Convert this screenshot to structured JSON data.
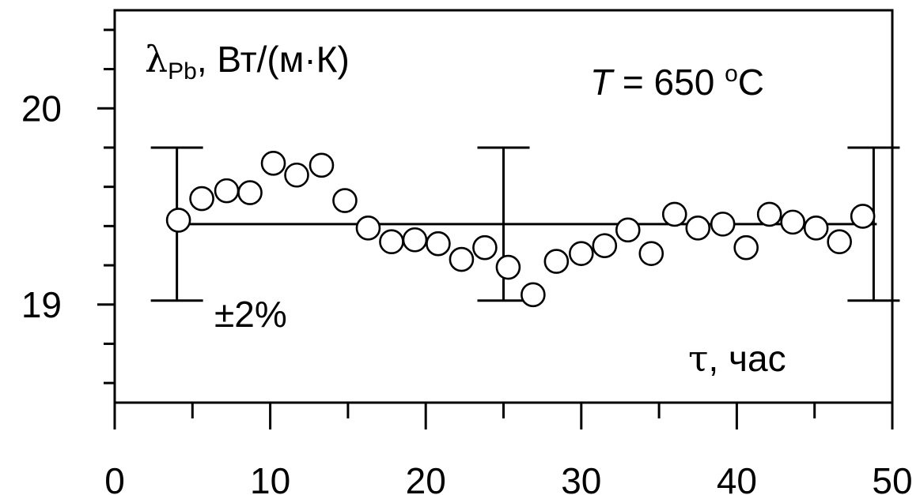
{
  "chart_data": {
    "type": "scatter",
    "title": "",
    "ylabel_prefix": "λ",
    "ylabel_subscript": "Pb",
    "ylabel_rest": ", Вт/(м·К)",
    "xlabel_symbol": "τ",
    "xlabel_rest": ", час",
    "temperature_T": "T",
    "temperature_rest": " = 650 ",
    "temperature_deg": "o",
    "temperature_unit": "C",
    "band_label": "±2%",
    "xlim": [
      0,
      50
    ],
    "ylim": [
      18.5,
      20.5
    ],
    "x_ticks": [
      0,
      10,
      20,
      30,
      40,
      50
    ],
    "x_tick_labels": [
      "0",
      "10",
      "20",
      "30",
      "40",
      "50"
    ],
    "y_major_ticks": [
      19,
      20
    ],
    "y_tick_labels": [
      "19",
      "20"
    ],
    "y_minor_ticks": [
      18.6,
      18.8,
      19.2,
      19.4,
      19.6,
      19.8,
      20.2,
      20.4
    ],
    "x_minor_ticks": [
      5,
      15,
      25,
      35,
      45
    ],
    "mean_value": 19.41,
    "mean_line_x": [
      4,
      49
    ],
    "error_bars": [
      {
        "x": 4,
        "low": 19.02,
        "high": 19.8
      },
      {
        "x": 25,
        "low": 19.02,
        "high": 19.8
      },
      {
        "x": 48.8,
        "low": 19.02,
        "high": 19.8
      }
    ],
    "series": [
      {
        "x": [
          4.1,
          5.6,
          7.2,
          8.7,
          10.2,
          11.7,
          13.3,
          14.8,
          16.3,
          17.8,
          19.3,
          20.8,
          22.3,
          23.8,
          25.3,
          26.9,
          28.4,
          30.0,
          31.5,
          33.0,
          34.5,
          36.0,
          37.5,
          39.1,
          40.6,
          42.1,
          43.6,
          45.1,
          46.6,
          48.1
        ],
        "y": [
          19.43,
          19.54,
          19.58,
          19.57,
          19.72,
          19.66,
          19.71,
          19.53,
          19.39,
          19.32,
          19.33,
          19.31,
          19.23,
          19.29,
          19.19,
          19.05,
          19.22,
          19.26,
          19.3,
          19.38,
          19.26,
          19.46,
          19.39,
          19.41,
          19.29,
          19.46,
          19.42,
          19.39,
          19.32,
          19.45
        ]
      }
    ]
  }
}
